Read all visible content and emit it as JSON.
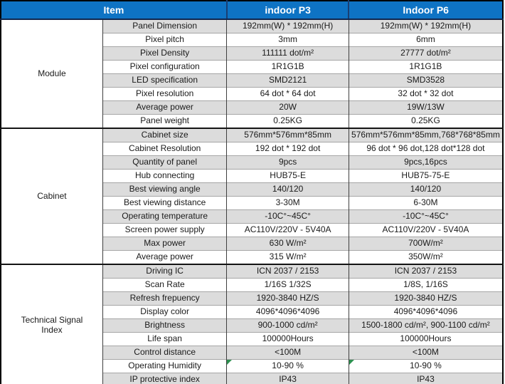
{
  "colors": {
    "header_bg": "#0e73c4",
    "header_text": "#ffffff",
    "header_divider": "#1a3f73",
    "stripe_gray": "#dcdcdc",
    "stripe_white": "#ffffff",
    "row_grid_line": "#a6a6a6",
    "column_line": "#3f3f3f",
    "outer_border": "#000000",
    "marker_green": "#2d9150",
    "body_text": "#1a1a1a"
  },
  "header": {
    "item_label": "Item",
    "columns": [
      "indoor P3",
      "Indoor P6"
    ]
  },
  "groups": [
    {
      "name": "Module",
      "rows": [
        {
          "label": "Panel Dimension",
          "p3": "192mm(W) * 192mm(H)",
          "p6": "192mm(W) * 192mm(H)"
        },
        {
          "label": "Pixel pitch",
          "p3": "3mm",
          "p6": "6mm"
        },
        {
          "label": "Pixel Density",
          "p3": "111111 dot/m²",
          "p6": "27777 dot/m²"
        },
        {
          "label": "Pixel configuration",
          "p3": "1R1G1B",
          "p6": "1R1G1B"
        },
        {
          "label": "LED specification",
          "p3": "SMD2121",
          "p6": "SMD3528"
        },
        {
          "label": "Pixel resolution",
          "p3": "64 dot * 64 dot",
          "p6": "32 dot * 32 dot"
        },
        {
          "label": "Average power",
          "p3": "20W",
          "p6": "19W/13W"
        },
        {
          "label": "Panel weight",
          "p3": "0.25KG",
          "p6": "0.25KG"
        }
      ]
    },
    {
      "name": "Cabinet",
      "rows": [
        {
          "label": "Cabinet size",
          "p3": "576mm*576mm*85mm",
          "p6": "576mm*576mm*85mm,768*768*85mm"
        },
        {
          "label": "Cabinet Resolution",
          "p3": "192 dot * 192 dot",
          "p6": "96 dot * 96 dot,128 dot*128 dot"
        },
        {
          "label": "Quantity of panel",
          "p3": "9pcs",
          "p6": "9pcs,16pcs"
        },
        {
          "label": "Hub connecting",
          "p3": "HUB75-E",
          "p6": "HUB75-75-E"
        },
        {
          "label": "Best viewing angle",
          "p3": "140/120",
          "p6": "140/120"
        },
        {
          "label": "Best viewing distance",
          "p3": "3-30M",
          "p6": "6-30M"
        },
        {
          "label": "Operating temperature",
          "p3": "-10C°~45C°",
          "p6": "-10C°~45C°"
        },
        {
          "label": "Screen power supply",
          "p3": "AC110V/220V - 5V40A",
          "p6": "AC110V/220V - 5V40A"
        },
        {
          "label": "Max power",
          "p3": "630 W/m²",
          "p6": "700W/m²"
        },
        {
          "label": "Average power",
          "p3": "315 W/m²",
          "p6": "350W/m²"
        }
      ]
    },
    {
      "name": "Technical Signal Index",
      "rows": [
        {
          "label": "Driving IC",
          "p3": "ICN 2037 / 2153",
          "p6": "ICN 2037 / 2153"
        },
        {
          "label": "Scan Rate",
          "p3": "1/16S  1/32S",
          "p6": "1/8S, 1/16S"
        },
        {
          "label": "Refresh frepuency",
          "p3": "1920-3840 HZ/S",
          "p6": "1920-3840 HZ/S"
        },
        {
          "label": "Display color",
          "p3": "4096*4096*4096",
          "p6": "4096*4096*4096"
        },
        {
          "label": "Brightness",
          "p3": "900-1000 cd/m²",
          "p6": "1500-1800 cd/m², 900-1100 cd/m²"
        },
        {
          "label": "Life span",
          "p3": "100000Hours",
          "p6": "100000Hours"
        },
        {
          "label": "Control distance",
          "p3": "<100M",
          "p6": "<100M"
        },
        {
          "label": "Operating Humidity",
          "p3": "10-90 %",
          "p6": "10-90 %",
          "marker": true
        },
        {
          "label": "IP protective index",
          "p3": "IP43",
          "p6": "IP43"
        }
      ]
    }
  ]
}
